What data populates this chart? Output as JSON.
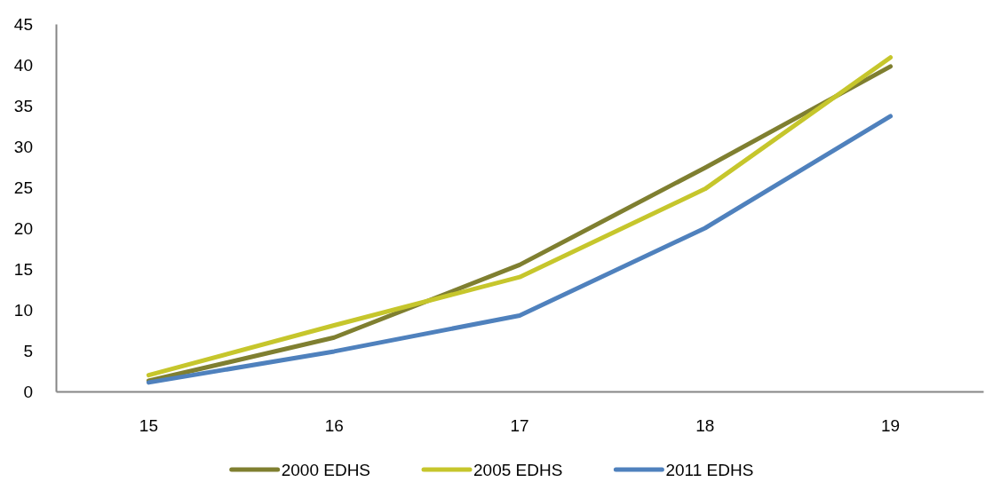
{
  "chart_data": {
    "type": "line",
    "categories": [
      "15",
      "16",
      "17",
      "18",
      "19"
    ],
    "series": [
      {
        "name": "2000 EDHS",
        "color": "#7f7f30",
        "values": [
          1.3,
          6.6,
          15.5,
          27.4,
          39.8
        ]
      },
      {
        "name": "2005 EDHS",
        "color": "#c6c62c",
        "values": [
          2.0,
          8.1,
          14.0,
          24.8,
          40.9
        ]
      },
      {
        "name": "2011 EDHS",
        "color": "#4f81bd",
        "values": [
          1.1,
          4.9,
          9.3,
          20.0,
          33.7
        ]
      }
    ],
    "ylim": [
      0,
      45
    ],
    "yticks": [
      0,
      5,
      10,
      15,
      20,
      25,
      30,
      35,
      40,
      45
    ],
    "grid": false,
    "legend": "bottom",
    "marker": "none",
    "line_style": "solid"
  }
}
